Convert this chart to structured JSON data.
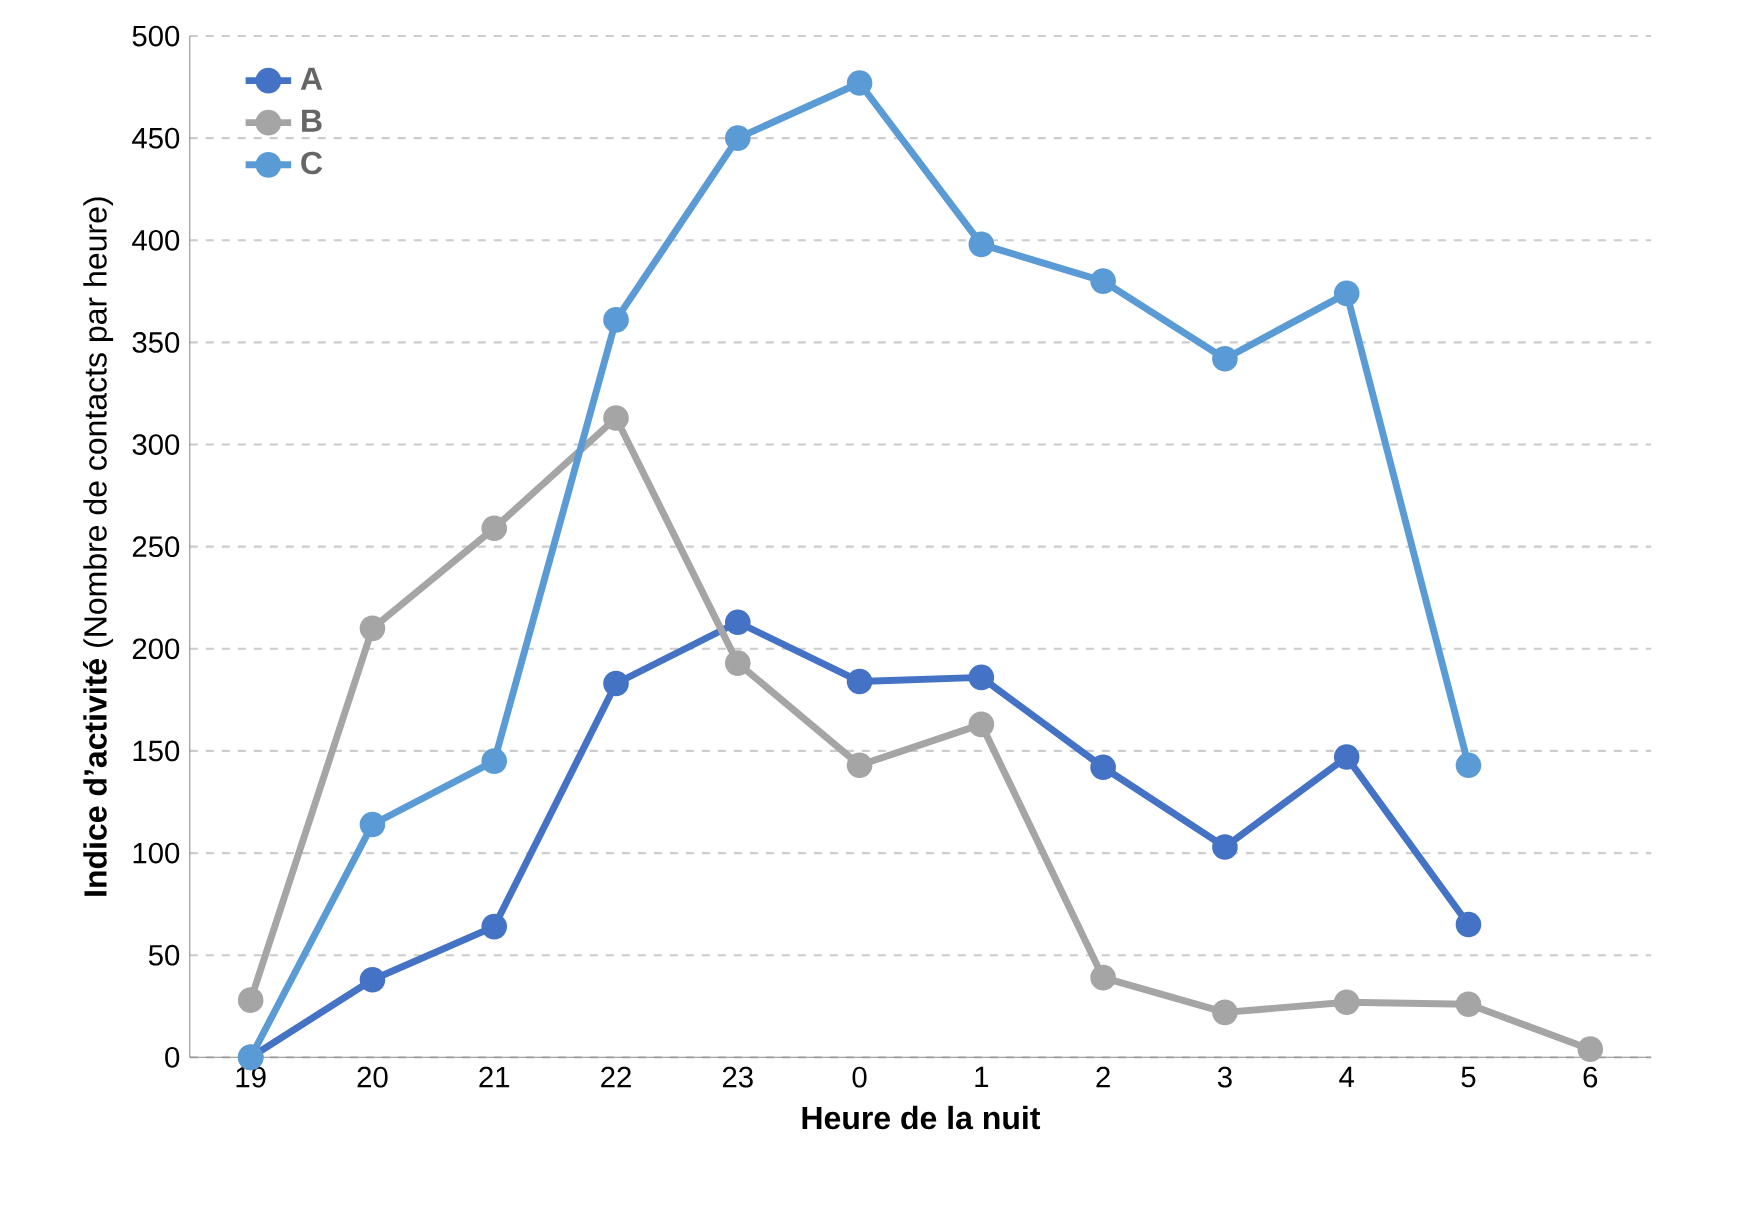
{
  "chart_data": {
    "type": "line",
    "xlabel": "Heure de la nuit",
    "ylabel": "**Indice d’activité** (Nombre de contacts par heure)",
    "categories": [
      "19",
      "20",
      "21",
      "22",
      "23",
      "0",
      "1",
      "2",
      "3",
      "4",
      "5",
      "6"
    ],
    "series": [
      {
        "name": "A",
        "color": "#4472c4",
        "values": [
          0,
          38,
          64,
          183,
          213,
          184,
          186,
          142,
          103,
          147,
          65,
          null
        ]
      },
      {
        "name": "B",
        "color": "#a5a5a5",
        "values": [
          28,
          210,
          259,
          313,
          193,
          143,
          163,
          39,
          22,
          27,
          26,
          4
        ]
      },
      {
        "name": "C",
        "color": "#5b9bd5",
        "values": [
          0,
          114,
          145,
          361,
          450,
          477,
          398,
          380,
          342,
          374,
          143,
          null
        ]
      }
    ],
    "ylim": [
      0,
      500
    ],
    "yticks": [
      0,
      50,
      100,
      150,
      200,
      250,
      300,
      350,
      400,
      450,
      500
    ],
    "grid": "y",
    "legend": "top left",
    "marker": "circle",
    "line_style": "solid"
  }
}
